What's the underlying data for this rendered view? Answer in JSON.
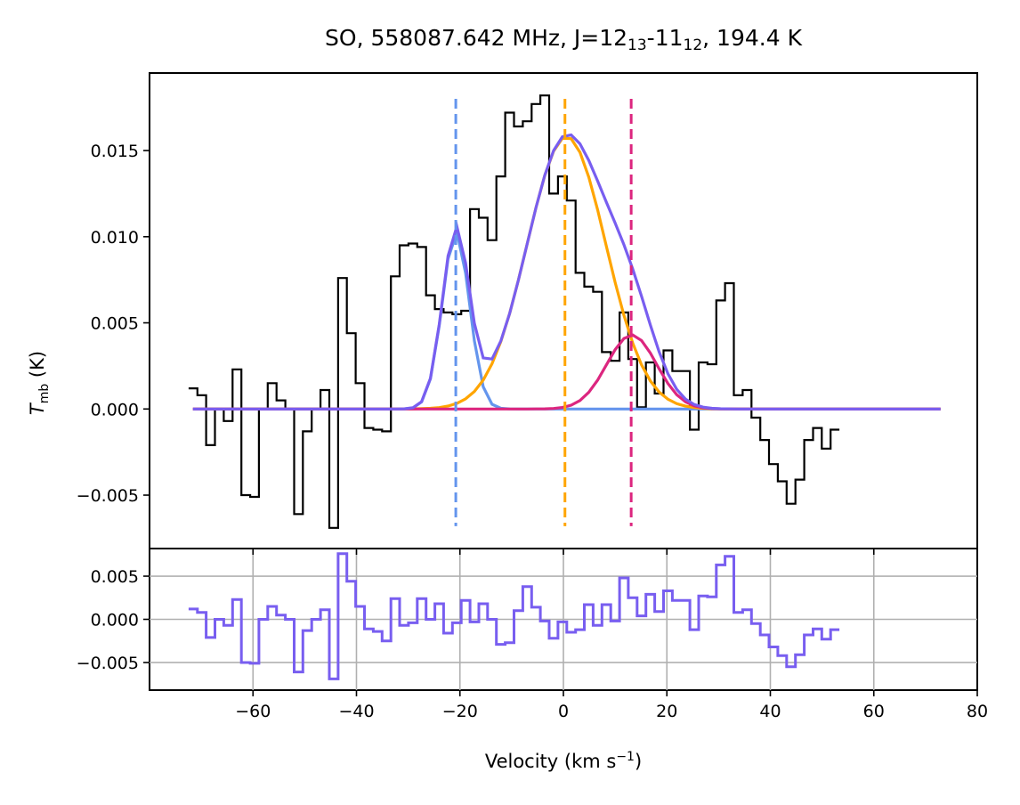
{
  "chart_data": [
    {
      "type": "line",
      "title": {
        "main": "SO, 558087.642 MHz, J=12",
        "sub1": "13",
        "mid": "-11",
        "sub2": "12",
        "tail": ", 194.4 K"
      },
      "ylabel": {
        "symbol": "T",
        "sub": "mb",
        "unit": " (K)"
      },
      "xlim": [
        -80,
        80
      ],
      "ylim": [
        -0.0081,
        0.0195
      ],
      "yticks": [
        -0.005,
        0.0,
        0.005,
        0.01,
        0.015
      ],
      "ytick_labels": [
        "−0.005",
        "0.000",
        "0.005",
        "0.010",
        "0.015"
      ],
      "grid": false,
      "observed": {
        "color": "#000000",
        "x_start": -71.6,
        "step": 1.7,
        "y": [
          0.0012,
          0.0008,
          -0.0021,
          0.0,
          -0.0007,
          0.0023,
          -0.005,
          -0.0051,
          0.0,
          0.0015,
          0.0005,
          0.0,
          -0.0061,
          -0.0013,
          0.0,
          0.0011,
          -0.0069,
          0.0076,
          0.0044,
          0.0015,
          -0.0011,
          -0.0012,
          -0.0013,
          0.0077,
          0.0095,
          0.0096,
          0.0094,
          0.0066,
          0.0058,
          0.0056,
          0.0055,
          0.0057,
          0.0116,
          0.0111,
          0.0098,
          0.0135,
          0.0172,
          0.0164,
          0.0167,
          0.0177,
          0.0182,
          0.0125,
          0.0135,
          0.0121,
          0.0079,
          0.0071,
          0.0068,
          0.0033,
          0.0028,
          0.0056,
          0.0029,
          0.0001,
          0.0027,
          0.0009,
          0.0034,
          0.0022,
          0.0022,
          -0.0012,
          0.0027,
          0.0026,
          0.0063,
          0.0073,
          0.0008,
          0.0011,
          -0.0005,
          -0.0018,
          -0.0032,
          -0.0042,
          -0.0055,
          -0.0041,
          -0.0018,
          -0.0011,
          -0.0023,
          -0.0012
        ]
      },
      "components": [
        {
          "color": "#6495ED",
          "amplitude": 0.0103,
          "center": -20.8,
          "sigma": 2.6
        },
        {
          "color": "#FFA500",
          "amplitude": 0.0158,
          "center": 0.6,
          "sigma": 7.6
        },
        {
          "color": "#DC267F",
          "amplitude": 0.0043,
          "center": 13.2,
          "sigma": 4.8
        }
      ],
      "fit_total_color": "#785EF0",
      "fit_x_range": [
        -71.6,
        73.0
      ],
      "vlines": [
        {
          "x": -20.8,
          "color": "#6495ED"
        },
        {
          "x": 0.3,
          "color": "#FFA500"
        },
        {
          "x": 13.1,
          "color": "#DC267F"
        }
      ]
    },
    {
      "type": "line",
      "xlabel": {
        "main": "Velocity (km s",
        "sup": "−1",
        "tail": ")"
      },
      "xlim": [
        -80,
        80
      ],
      "ylim": [
        -0.0082,
        0.0082
      ],
      "xticks": [
        -60,
        -40,
        -20,
        0,
        20,
        40,
        60,
        80
      ],
      "xtick_labels": [
        "−60",
        "−40",
        "−20",
        "0",
        "20",
        "40",
        "60",
        "80"
      ],
      "yticks": [
        -0.005,
        0.0,
        0.005
      ],
      "ytick_labels": [
        "−0.005",
        "0.000",
        "0.005"
      ],
      "grid": true,
      "residual": {
        "color": "#785EF0",
        "x_start": -71.6,
        "step": 1.7,
        "y": [
          0.0012,
          0.0008,
          -0.0021,
          0.0,
          -0.0007,
          0.0023,
          -0.005,
          -0.0051,
          0.0,
          0.0015,
          0.0005,
          0.0,
          -0.0061,
          -0.0013,
          0.0,
          0.0011,
          -0.0069,
          0.0076,
          0.0044,
          0.0015,
          -0.0011,
          -0.0014,
          -0.0025,
          0.0024,
          -0.0007,
          -0.0004,
          0.0024,
          0.0,
          0.0018,
          -0.0016,
          -0.0004,
          0.0022,
          -0.0003,
          0.0018,
          0.0,
          -0.0029,
          -0.0027,
          0.001,
          0.0038,
          0.0014,
          -0.0002,
          -0.0022,
          -0.0003,
          -0.0015,
          -0.0012,
          0.0017,
          -0.0007,
          0.0017,
          -0.0002,
          0.0048,
          0.0025,
          0.0004,
          0.0029,
          0.0009,
          0.0033,
          0.0022,
          0.0022,
          -0.0012,
          0.0027,
          0.0026,
          0.0063,
          0.0073,
          0.0008,
          0.0011,
          -0.0005,
          -0.0018,
          -0.0032,
          -0.0042,
          -0.0055,
          -0.0041,
          -0.0018,
          -0.0011,
          -0.0023,
          -0.0012
        ]
      }
    }
  ]
}
